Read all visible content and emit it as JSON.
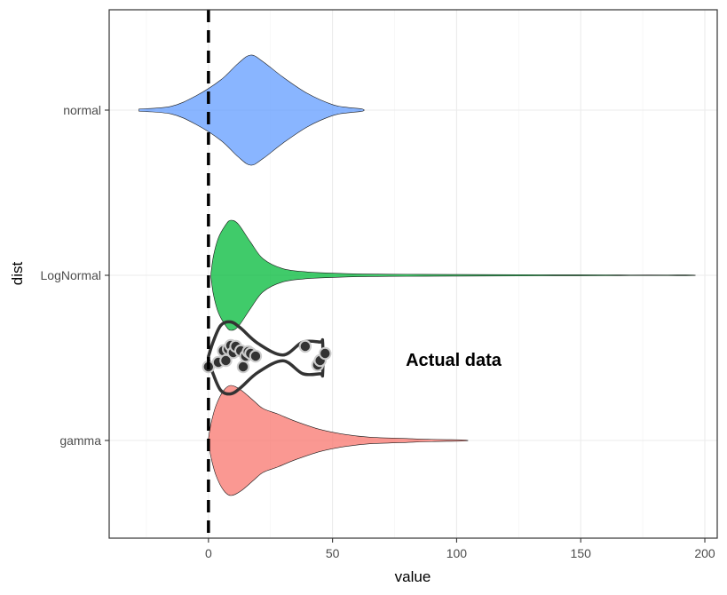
{
  "chart_data": {
    "type": "violin",
    "xlabel": "value",
    "ylabel": "dist",
    "xlim": [
      -40,
      205
    ],
    "x_ticks": [
      0,
      50,
      100,
      150,
      200
    ],
    "categories": [
      "normal",
      "LogNormal",
      "gamma"
    ],
    "grid": true,
    "reference_line": {
      "x": 0,
      "style": "dashed"
    },
    "annotation": {
      "text": "Actual data",
      "x": 100,
      "y": "between LogNormal and gamma"
    },
    "series": [
      {
        "category": "normal",
        "color": "#619CFF",
        "profile": [
          [
            -28,
            0.02
          ],
          [
            -15,
            0.07
          ],
          [
            -5,
            0.26
          ],
          [
            5,
            0.55
          ],
          [
            12,
            0.85
          ],
          [
            17,
            1.0
          ],
          [
            22,
            0.88
          ],
          [
            30,
            0.6
          ],
          [
            40,
            0.3
          ],
          [
            50,
            0.1
          ],
          [
            56,
            0.05
          ],
          [
            62,
            0.02
          ]
        ]
      },
      {
        "category": "LogNormal",
        "color": "#00BA38",
        "profile": [
          [
            1,
            0.03
          ],
          [
            2,
            0.35
          ],
          [
            4,
            0.68
          ],
          [
            7,
            0.92
          ],
          [
            9,
            1.0
          ],
          [
            12,
            0.93
          ],
          [
            17,
            0.6
          ],
          [
            22,
            0.3
          ],
          [
            30,
            0.12
          ],
          [
            40,
            0.06
          ],
          [
            50,
            0.04
          ],
          [
            60,
            0.025
          ],
          [
            80,
            0.018
          ],
          [
            100,
            0.015
          ],
          [
            125,
            0.012
          ],
          [
            140,
            0.009
          ],
          [
            160,
            0.008
          ],
          [
            170,
            0.006
          ],
          [
            185,
            0.006
          ],
          [
            195,
            0.006
          ]
        ]
      },
      {
        "category": "gamma",
        "color": "#F8766D",
        "profile": [
          [
            0,
            0.03
          ],
          [
            1,
            0.3
          ],
          [
            3,
            0.63
          ],
          [
            6,
            0.9
          ],
          [
            9,
            1.0
          ],
          [
            13,
            0.92
          ],
          [
            18,
            0.73
          ],
          [
            22,
            0.58
          ],
          [
            28,
            0.48
          ],
          [
            35,
            0.35
          ],
          [
            45,
            0.2
          ],
          [
            55,
            0.11
          ],
          [
            65,
            0.06
          ],
          [
            80,
            0.035
          ],
          [
            90,
            0.02
          ],
          [
            103,
            0.01
          ]
        ]
      }
    ],
    "actual_data": {
      "profile": [
        [
          0,
          0.03
        ],
        [
          2,
          0.35
        ],
        [
          5,
          0.68
        ],
        [
          9,
          0.75
        ],
        [
          13,
          0.62
        ],
        [
          20,
          0.3
        ],
        [
          30,
          0.06
        ],
        [
          38,
          0.33
        ],
        [
          45,
          0.33
        ],
        [
          46,
          0.33
        ]
      ],
      "points": [
        [
          0,
          -0.1
        ],
        [
          4,
          -0.05
        ],
        [
          6,
          0.08
        ],
        [
          7,
          -0.03
        ],
        [
          8,
          0.1
        ],
        [
          9,
          0.14
        ],
        [
          10,
          0.06
        ],
        [
          11,
          0.13
        ],
        [
          13,
          0.08
        ],
        [
          14,
          -0.1
        ],
        [
          15,
          0.02
        ],
        [
          16,
          0.07
        ],
        [
          17,
          0.05
        ],
        [
          19,
          0.02
        ],
        [
          39,
          0.13
        ],
        [
          44,
          -0.08
        ],
        [
          45,
          -0.03
        ],
        [
          47,
          0.05
        ]
      ]
    }
  }
}
